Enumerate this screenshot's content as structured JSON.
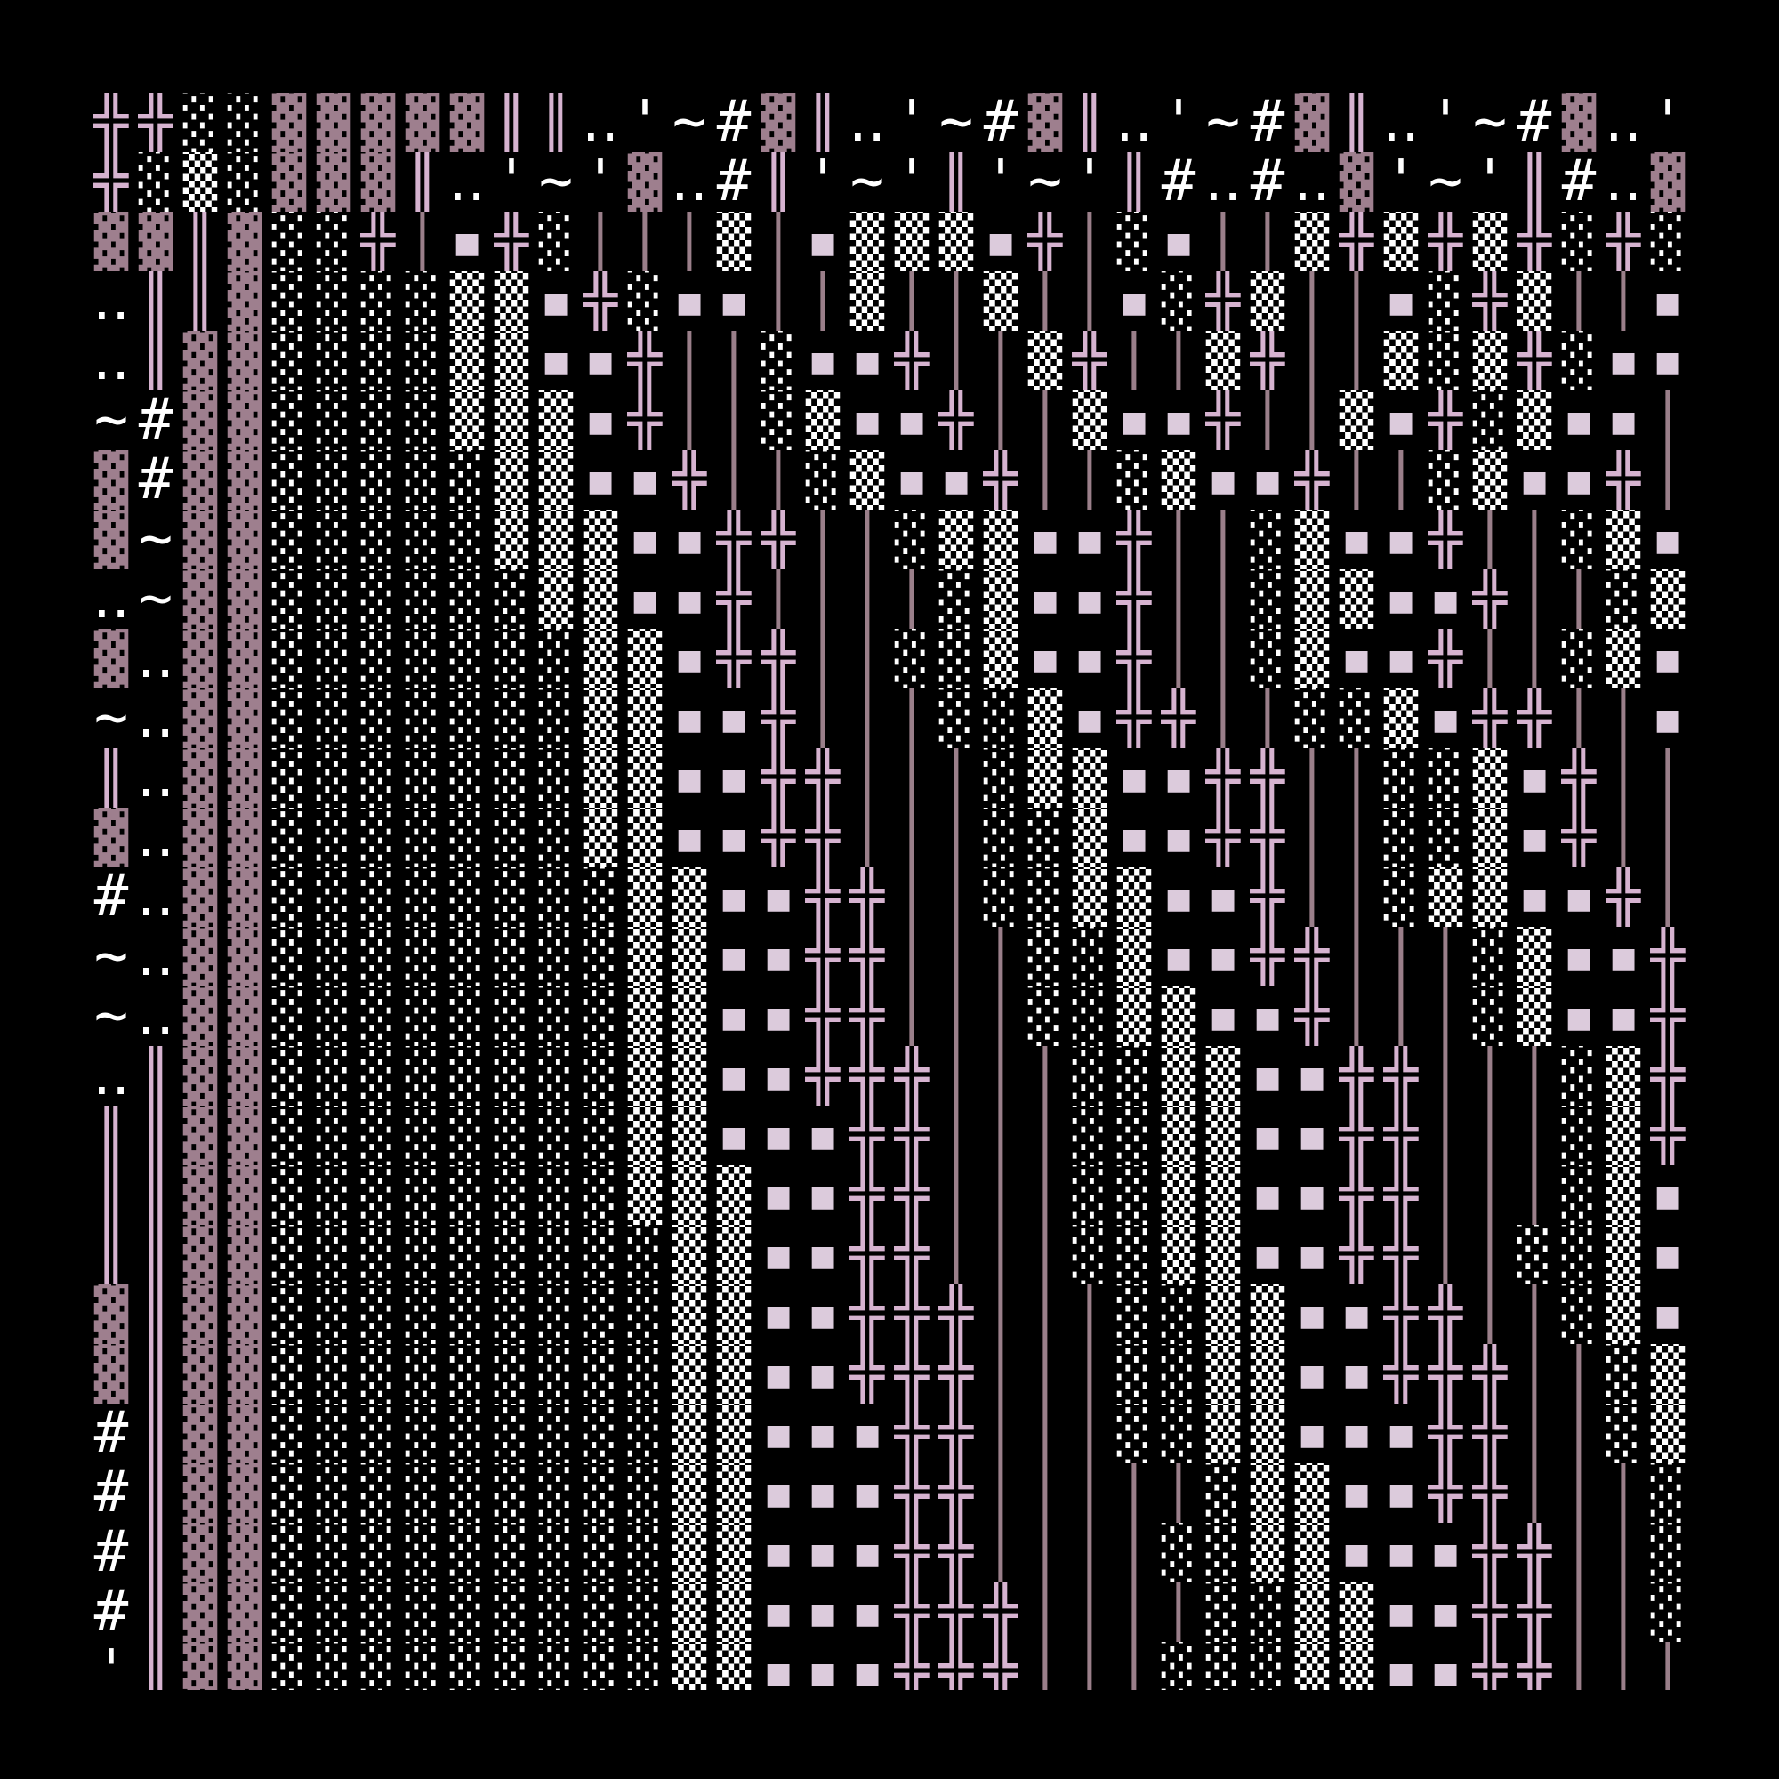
{
  "palette": {
    "background": "#000000",
    "double_cross": "#d6b3d0",
    "double_bar": "#d6b3d0",
    "square_dots": "#dccbdc",
    "dense_shade": "#9e7f8e",
    "thin_bar": "#9a7f8a",
    "light_shade": "#ffffff",
    "text": "#ffffff"
  },
  "rows": [
    "╬╬░░▓▓▓▓▓║║‥'~#▓║‥'~#▓║‥'~#▓║‥'~#▓‥'",
    "╬░▒░▓▓▓║‥'~'▓‥#║'~'║'~'║#‥#‥▓'~'║#‥▓",
    "▓▓║▓░░╬│▪╬░│││▒│▪▒▒▒▪╬│░▪││▒╬▒╬▒╬░╬░",
    "‥║║▓░░░░▒▒▪╬░▪▪││▒││▒││▪░╬▒││▪░╬▒││▪",
    "‥║▓▓░░░░▒▒▪▪╬││░▪▪╬││▒╬││▒╬││▒░▒╬░▪▪",
    "~#▓▓░░░░▒▒▒▪╬││░▒▪▪╬││▒▪▪╬││▒▪╬░▒▪▪│",
    "▓#▓▓░░░░░▒▒▪▪╬││░▒▪▪╬││░▒▪▪╬││░▒▪▪╬│",
    "▓~▓▓░░░░░▒▒▒▪▪╬╬││░▒▒▪▪╬││░▒▪▪╬││░▒▪",
    "‥~▓▓░░░░░░▒▒▪▪╬││││░▒▪▪╬││░▒▒▪▪╬││░▒",
    "▓‥▓▓░░░░░░░▒▒▪╬╬││░░▒▪▪╬││░▒▪▪╬││░▒▪",
    "~‥▓▓░░░░░░░▒▒▪▪╬│││░░▒▪╬╬││░░▒▪╬╬││▪",
    "║‥▓▓░░░░░░░▒▒▪▪╬╬│││░▒▒▪▪╬╬││░░▒▪╬││",
    "▓‥▓▓░░░░░░░▒▒▪▪╬╬│││░░▒▪▪╬╬││░░▒▪╬││",
    "#‥▓▓░░░░░░░░▒▒▪▪╬╬││░░▒▒▪▪╬││░▒▒▪▪╬│",
    "~‥▓▓░░░░░░░░▒▒▪▪╬╬│││░░▒▪▪╬╬│││░▒▪▪╬",
    "~‥▓▓░░░░░░░░▒▒▪▪╬╬│││░░▒▒▪▪╬│││░▒▪▪╬",
    "‥║▓▓░░░░░░░░▒▒▪▪╬╬╬│││░░▒▒▪▪╬╬│││░▒╬",
    "║║▓▓░░░░░░░░▒▒▪▪▪╬╬│││░░▒▒▪▪╬╬│││░▒╬",
    "║║▓▓░░░░░░░░▒▒▒▪▪╬╬│││░░▒▒▪▪╬╬│││░▒▪",
    "║║▓▓░░░░░░░░░▒▒▪▪╬╬│││░░▒▒▪▪╬╬││░░▒▪",
    "▓║▓▓░░░░░░░░░▒▒▪▪╬╬╬│││░░▒▒▪▪╬╬││░▒▪",
    "▓║▓▓░░░░░░░░░▒▒▪▪╬╬╬│││░░▒▒▪▪╬╬╬││░▒",
    "#║▓▓░░░░░░░░░▒▒▪▪▪╬╬│││░░▒▒▪▪▪╬╬││░▒",
    "#║▓▓░░░░░░░░░▒▒▪▪▪╬╬│││││░▒▒▪▪╬╬│││░",
    "#║▓▓░░░░░░░░░▒▒▪▪▪╬╬││││░░▒▒▪▪▪╬╬││░",
    "#║▓▓░░░░░░░░░▒▒▪▪▪╬╬╬││││░░▒▒▪▪╬╬││░",
    "'║▓▓░░░░░░░░░▒▒▪▪▪╬╬╬│││░░░▒▒▪▪╬╬│││"
  ]
}
